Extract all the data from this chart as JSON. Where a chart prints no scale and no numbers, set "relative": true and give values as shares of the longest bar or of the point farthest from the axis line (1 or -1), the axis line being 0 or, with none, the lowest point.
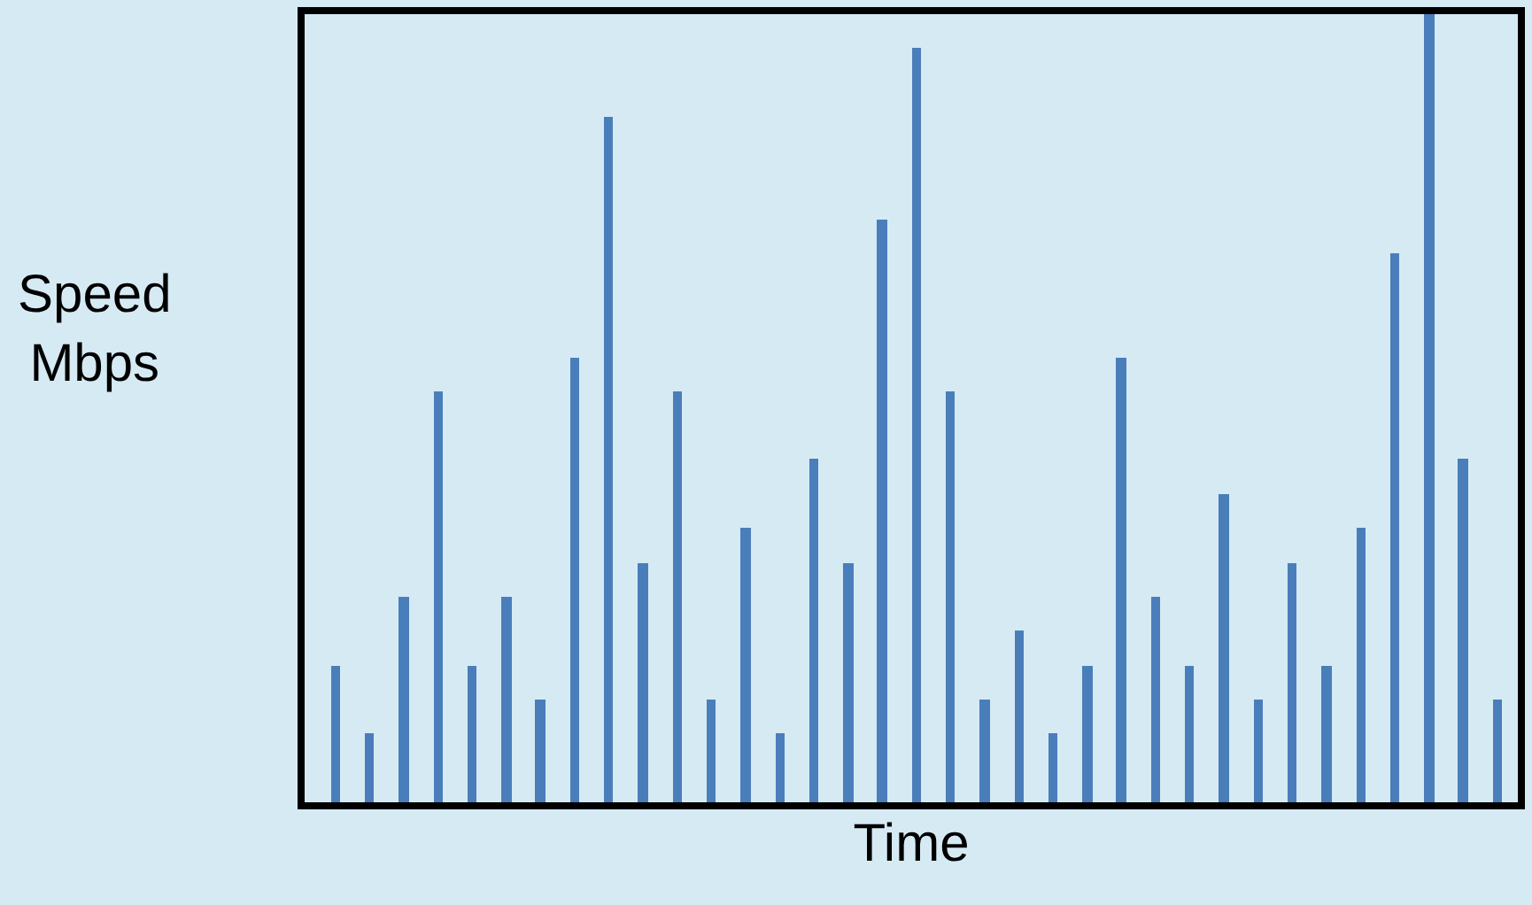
{
  "chart_data": {
    "type": "bar",
    "relative": true,
    "xlabel": "Time",
    "ylabel": "Speed\nMbps",
    "categories": [
      null,
      null,
      null,
      null,
      null,
      null,
      null,
      null,
      null,
      null,
      null,
      null,
      null,
      null,
      null,
      null,
      null,
      null,
      null,
      null,
      null,
      null,
      null,
      null,
      null,
      null,
      null,
      null,
      null,
      null,
      null,
      null,
      null,
      null,
      null
    ],
    "values": [
      0.174,
      0.087,
      0.261,
      0.522,
      0.174,
      0.261,
      0.13,
      0.565,
      0.87,
      0.304,
      0.522,
      0.13,
      0.348,
      0.087,
      0.435,
      0.304,
      0.739,
      0.957,
      0.522,
      0.13,
      0.217,
      0.087,
      0.174,
      0.565,
      0.261,
      0.174,
      0.391,
      0.13,
      0.304,
      0.174,
      0.348,
      0.696,
      1,
      0.435,
      0.13
    ],
    "color": "#4a7ebb",
    "tick_labels": false
  }
}
